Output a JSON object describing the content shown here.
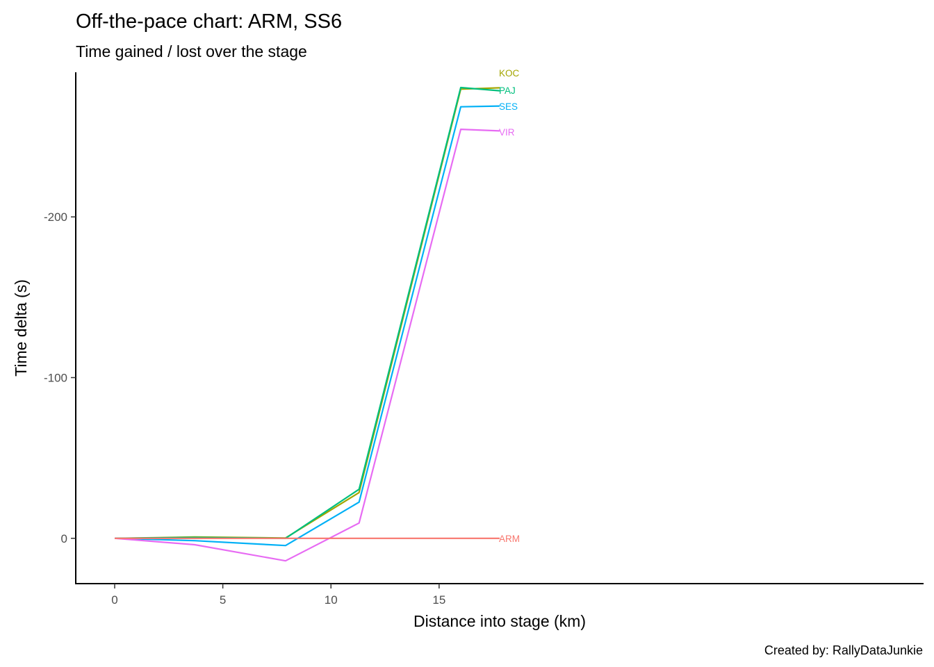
{
  "chart_data": {
    "type": "line",
    "title": "Off-the-pace chart: ARM, SS6",
    "subtitle": "Time gained / lost over the stage",
    "xlabel": "Distance into stage (km)",
    "ylabel": "Time delta (s)",
    "caption": "Created by: RallyDataJunkie",
    "xlim": [
      -1.8,
      37.4
    ],
    "ylim": [
      28.2,
      -290
    ],
    "y_reversed": true,
    "x_ticks": [
      0,
      5,
      10,
      15
    ],
    "y_ticks": [
      0,
      -100,
      -200
    ],
    "grid": false,
    "legend": "none (direct end labels)",
    "series": [
      {
        "name": "ARM",
        "color": "#F8766D",
        "x": [
          0,
          3.7,
          7.9,
          11.3,
          16.0,
          17.8
        ],
        "y": [
          0,
          0,
          0,
          0,
          0,
          0
        ]
      },
      {
        "name": "KOC",
        "color": "#A3A500",
        "x": [
          0,
          3.7,
          7.9,
          11.3,
          16.0,
          17.8
        ],
        "y": [
          0,
          -0.8,
          -0.2,
          -28.5,
          -279.5,
          -280.3
        ]
      },
      {
        "name": "PAJ",
        "color": "#00BF7D",
        "x": [
          0,
          3.7,
          7.9,
          11.3,
          16.0,
          17.8
        ],
        "y": [
          0,
          -0.5,
          0,
          -30.5,
          -280.5,
          -278.5
        ]
      },
      {
        "name": "SES",
        "color": "#00B0F6",
        "x": [
          0,
          3.7,
          7.9,
          11.3,
          16.0,
          17.8
        ],
        "y": [
          0,
          1.5,
          4.5,
          -22.5,
          -268.5,
          -269.0
        ]
      },
      {
        "name": "VIR",
        "color": "#E76BF3",
        "x": [
          0,
          3.7,
          7.9,
          11.3,
          16.0,
          17.8
        ],
        "y": [
          0,
          4,
          14,
          -9.5,
          -254.5,
          -253.5
        ]
      }
    ],
    "end_labels": [
      {
        "text": "KOC",
        "color": "#A3A500",
        "y": -289.5
      },
      {
        "text": "PAJ",
        "color": "#00BF7D",
        "y": -278.8
      },
      {
        "text": "SES",
        "color": "#00B0F6",
        "y": -268.8
      },
      {
        "text": "VIR",
        "color": "#E76BF3",
        "y": -252.8
      },
      {
        "text": "ARM",
        "color": "#F8766D",
        "y": 0
      }
    ]
  }
}
